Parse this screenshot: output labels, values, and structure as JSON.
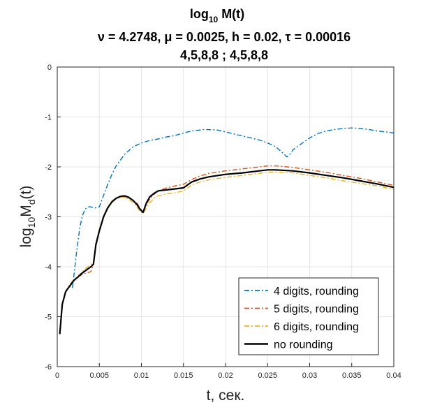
{
  "chart_data": {
    "type": "line",
    "title": {
      "line1_main": "log",
      "line1_sub": "10",
      "line1_rest": " M(t)",
      "line2": "ν = 4.2748, μ = 0.0025, h = 0.02, τ = 0.00016",
      "line3": "4,5,8,8 ; 4,5,8,8"
    },
    "xlabel": "t, сек.",
    "ylabel": {
      "main": "log",
      "sub1": "10",
      "mid": "M",
      "sub2": "d",
      "rest": "(t)"
    },
    "xlim": [
      0,
      0.04
    ],
    "ylim": [
      -6,
      0
    ],
    "xticks": [
      0,
      0.005,
      0.01,
      0.015,
      0.02,
      0.025,
      0.03,
      0.035,
      0.04
    ],
    "xtick_labels": [
      "0",
      "0.005",
      "0.01",
      "0.015",
      "0.02",
      "0.025",
      "0.03",
      "0.035",
      "0.04"
    ],
    "yticks": [
      0,
      -1,
      -2,
      -3,
      -4,
      -5,
      -6
    ],
    "ytick_labels": [
      "0",
      "-1",
      "-2",
      "-3",
      "-4",
      "-5",
      "-6"
    ],
    "grid": true,
    "legend_position": "bottom-right",
    "series": [
      {
        "name": "4 digits, rounding",
        "color": "#0072BD",
        "style": "dash-dot",
        "x": [
          0.0003,
          0.0006,
          0.001,
          0.0014,
          0.0018,
          0.0019,
          0.0021,
          0.0023,
          0.0025,
          0.0027,
          0.003,
          0.0033,
          0.0036,
          0.004,
          0.0043,
          0.0046,
          0.005,
          0.0055,
          0.006,
          0.0065,
          0.007,
          0.008,
          0.009,
          0.01,
          0.011,
          0.012,
          0.013,
          0.014,
          0.015,
          0.016,
          0.0175,
          0.019,
          0.02,
          0.021,
          0.022,
          0.023,
          0.024,
          0.025,
          0.026,
          0.0268,
          0.0273,
          0.0278,
          0.028,
          0.029,
          0.03,
          0.031,
          0.032,
          0.033,
          0.034,
          0.035,
          0.036,
          0.037,
          0.038,
          0.039,
          0.04
        ],
        "y": [
          -5.35,
          -4.75,
          -4.5,
          -4.4,
          -4.42,
          -4.28,
          -4.0,
          -3.7,
          -3.45,
          -3.2,
          -2.97,
          -2.85,
          -2.8,
          -2.8,
          -2.82,
          -2.82,
          -2.8,
          -2.57,
          -2.35,
          -2.15,
          -1.98,
          -1.75,
          -1.6,
          -1.52,
          -1.47,
          -1.44,
          -1.4,
          -1.37,
          -1.32,
          -1.28,
          -1.25,
          -1.26,
          -1.3,
          -1.34,
          -1.38,
          -1.42,
          -1.46,
          -1.52,
          -1.6,
          -1.72,
          -1.8,
          -1.72,
          -1.66,
          -1.54,
          -1.42,
          -1.33,
          -1.28,
          -1.25,
          -1.23,
          -1.22,
          -1.23,
          -1.25,
          -1.28,
          -1.3,
          -1.32
        ]
      },
      {
        "name": "5 digits, rounding",
        "color": "#D95319",
        "style": "dash-dot",
        "x": [
          0.0003,
          0.0006,
          0.001,
          0.0015,
          0.002,
          0.0025,
          0.003,
          0.0035,
          0.004,
          0.0043,
          0.0046,
          0.005,
          0.0055,
          0.006,
          0.0065,
          0.007,
          0.0075,
          0.008,
          0.0085,
          0.009,
          0.0095,
          0.0098,
          0.0102,
          0.0106,
          0.011,
          0.0115,
          0.012,
          0.013,
          0.014,
          0.015,
          0.016,
          0.017,
          0.018,
          0.02,
          0.022,
          0.024,
          0.025,
          0.026,
          0.028,
          0.03,
          0.032,
          0.034,
          0.036,
          0.038,
          0.04
        ],
        "y": [
          -5.35,
          -4.75,
          -4.5,
          -4.35,
          -4.25,
          -4.2,
          -4.15,
          -4.12,
          -4.1,
          -3.95,
          -3.6,
          -3.28,
          -3.0,
          -2.82,
          -2.7,
          -2.63,
          -2.6,
          -2.6,
          -2.62,
          -2.67,
          -2.73,
          -2.82,
          -2.9,
          -2.75,
          -2.64,
          -2.55,
          -2.48,
          -2.42,
          -2.38,
          -2.35,
          -2.25,
          -2.18,
          -2.13,
          -2.08,
          -2.04,
          -2.0,
          -1.98,
          -1.98,
          -2.01,
          -2.06,
          -2.11,
          -2.17,
          -2.23,
          -2.3,
          -2.37
        ]
      },
      {
        "name": "6 digits, rounding",
        "color": "#EDB120",
        "style": "dash-dot",
        "x": [
          0.0003,
          0.0006,
          0.001,
          0.0015,
          0.002,
          0.0025,
          0.003,
          0.0035,
          0.004,
          0.0043,
          0.0046,
          0.005,
          0.0055,
          0.006,
          0.0065,
          0.007,
          0.0075,
          0.008,
          0.0085,
          0.009,
          0.0095,
          0.0098,
          0.0102,
          0.0106,
          0.011,
          0.0115,
          0.012,
          0.013,
          0.014,
          0.015,
          0.016,
          0.017,
          0.018,
          0.02,
          0.022,
          0.024,
          0.025,
          0.026,
          0.028,
          0.03,
          0.032,
          0.034,
          0.036,
          0.038,
          0.04
        ],
        "y": [
          -5.35,
          -4.75,
          -4.5,
          -4.35,
          -4.25,
          -4.18,
          -4.1,
          -4.02,
          -3.95,
          -3.9,
          -3.55,
          -3.25,
          -2.98,
          -2.8,
          -2.68,
          -2.62,
          -2.6,
          -2.61,
          -2.65,
          -2.71,
          -2.8,
          -2.88,
          -2.93,
          -2.82,
          -2.72,
          -2.63,
          -2.58,
          -2.54,
          -2.52,
          -2.48,
          -2.36,
          -2.3,
          -2.26,
          -2.21,
          -2.17,
          -2.13,
          -2.11,
          -2.1,
          -2.12,
          -2.17,
          -2.22,
          -2.28,
          -2.33,
          -2.38,
          -2.45
        ]
      },
      {
        "name": "no rounding",
        "color": "#000000",
        "style": "solid",
        "x": [
          0.0003,
          0.0006,
          0.001,
          0.0015,
          0.002,
          0.0025,
          0.003,
          0.0035,
          0.004,
          0.0043,
          0.0046,
          0.005,
          0.0055,
          0.006,
          0.0065,
          0.007,
          0.0075,
          0.008,
          0.0085,
          0.009,
          0.0095,
          0.0098,
          0.0102,
          0.0106,
          0.011,
          0.0115,
          0.012,
          0.013,
          0.014,
          0.015,
          0.016,
          0.017,
          0.018,
          0.02,
          0.022,
          0.024,
          0.025,
          0.026,
          0.028,
          0.03,
          0.032,
          0.034,
          0.036,
          0.038,
          0.04
        ],
        "y": [
          -5.35,
          -4.75,
          -4.5,
          -4.38,
          -4.27,
          -4.2,
          -4.12,
          -4.06,
          -4.0,
          -3.95,
          -3.55,
          -3.28,
          -3.0,
          -2.82,
          -2.7,
          -2.63,
          -2.59,
          -2.58,
          -2.61,
          -2.67,
          -2.76,
          -2.84,
          -2.91,
          -2.72,
          -2.6,
          -2.53,
          -2.48,
          -2.46,
          -2.44,
          -2.42,
          -2.3,
          -2.24,
          -2.2,
          -2.15,
          -2.12,
          -2.08,
          -2.06,
          -2.06,
          -2.08,
          -2.12,
          -2.17,
          -2.22,
          -2.28,
          -2.34,
          -2.41
        ]
      }
    ]
  }
}
